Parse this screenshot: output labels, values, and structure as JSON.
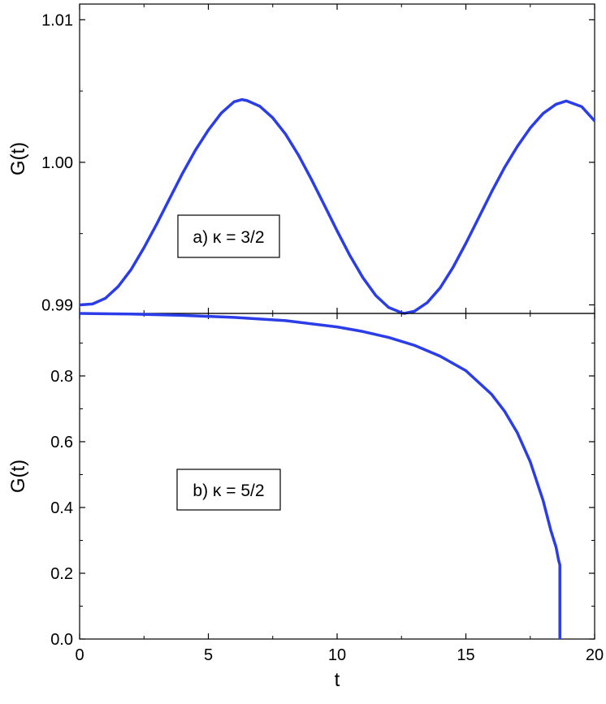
{
  "chart_data": [
    {
      "type": "line",
      "panel": "top",
      "annotation": "a) κ = 3/2",
      "xlabel": "",
      "ylabel": "G(t)",
      "xlim": [
        0,
        20
      ],
      "ylim": [
        0.9894,
        1.0111
      ],
      "xticks": [
        0,
        5,
        10,
        15,
        20
      ],
      "yticks": [
        0.99,
        1.0,
        1.01
      ],
      "ytick_labels": [
        "0.99",
        "1.00",
        "1.01"
      ],
      "grid": false,
      "series": [
        {
          "color": "#2a3de8",
          "x": [
            0,
            0.5,
            1,
            1.5,
            2,
            2.5,
            3,
            3.5,
            4,
            4.5,
            5,
            5.5,
            6,
            6.3,
            6.5,
            7,
            7.5,
            8,
            8.5,
            9,
            9.5,
            10,
            10.5,
            11,
            11.5,
            12,
            12.5,
            12.6,
            13,
            13.5,
            14,
            14.5,
            15,
            15.5,
            16,
            16.5,
            17,
            17.5,
            18,
            18.5,
            18.9,
            19.5,
            20
          ],
          "y": [
            0.99,
            0.99006,
            0.99046,
            0.99129,
            0.99248,
            0.99401,
            0.99569,
            0.99747,
            0.99924,
            1.00086,
            1.00226,
            1.00345,
            1.00425,
            1.0044,
            1.00433,
            1.00393,
            1.00312,
            1.00197,
            1.0005,
            0.99881,
            0.99701,
            0.99519,
            0.99345,
            0.99191,
            0.99066,
            0.98982,
            0.98945,
            0.9894,
            0.98955,
            0.99016,
            0.99119,
            0.99263,
            0.99432,
            0.99612,
            0.99793,
            0.99963,
            1.00112,
            1.00241,
            1.00343,
            1.00407,
            1.0043,
            1.0039,
            1.0029
          ]
        }
      ]
    },
    {
      "type": "line",
      "panel": "bottom",
      "annotation": "b) κ = 5/2",
      "xlabel": "t",
      "ylabel": "G(t)",
      "xlim": [
        0,
        20
      ],
      "ylim": [
        0,
        0.99
      ],
      "xticks": [
        0,
        5,
        10,
        15,
        20
      ],
      "yticks": [
        0.0,
        0.2,
        0.4,
        0.6,
        0.8
      ],
      "ytick_labels": [
        "0.0",
        "0.2",
        "0.4",
        "0.6",
        "0.8"
      ],
      "grid": false,
      "series": [
        {
          "color": "#2a3de8",
          "x": [
            0,
            2,
            4,
            6,
            8,
            10,
            11,
            12,
            13,
            14,
            15,
            16,
            16.5,
            17,
            17.5,
            18,
            18.3,
            18.5,
            18.6,
            18.65,
            18.65
          ],
          "y": [
            0.99,
            0.988,
            0.984,
            0.978,
            0.968,
            0.949,
            0.935,
            0.917,
            0.893,
            0.86,
            0.816,
            0.744,
            0.693,
            0.627,
            0.539,
            0.421,
            0.33,
            0.28,
            0.24,
            0.225,
            0.0
          ]
        }
      ]
    }
  ]
}
